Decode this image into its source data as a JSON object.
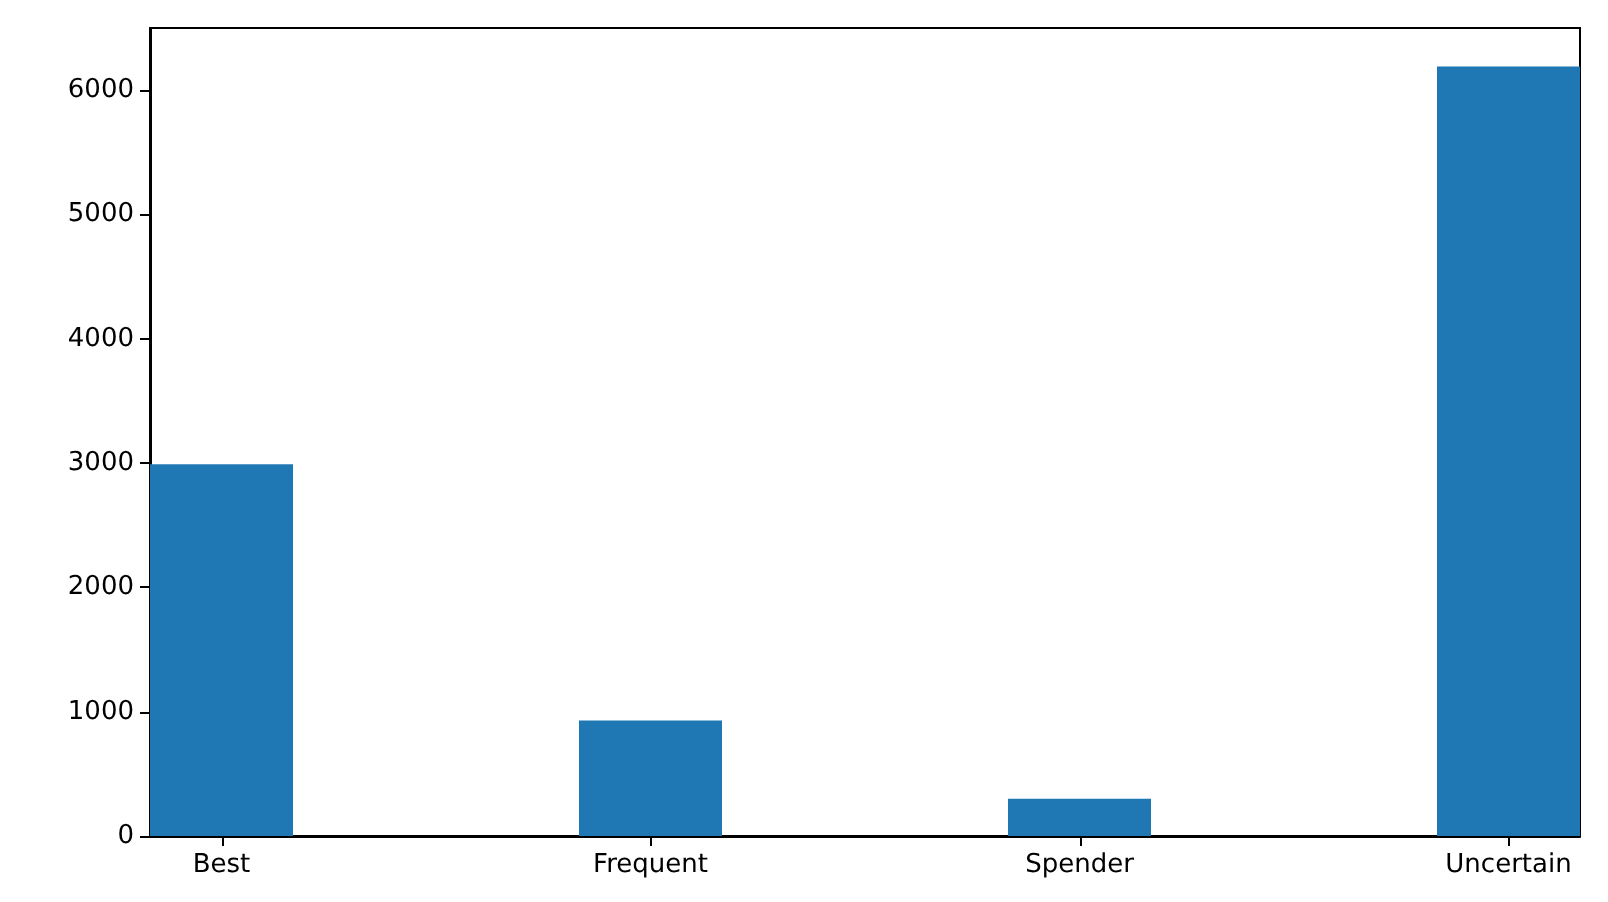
{
  "chart_data": {
    "type": "bar",
    "categories": [
      "Best",
      null,
      null,
      "Frequent",
      null,
      null,
      "Spender",
      null,
      null,
      "Uncertain"
    ],
    "values": [
      2990,
      0,
      0,
      930,
      0,
      0,
      300,
      0,
      0,
      6190
    ],
    "color": "#1f77b4",
    "ylim": [
      0,
      6500
    ],
    "yticks": [
      0,
      1000,
      2000,
      3000,
      4000,
      5000,
      6000
    ],
    "grid": false
  }
}
